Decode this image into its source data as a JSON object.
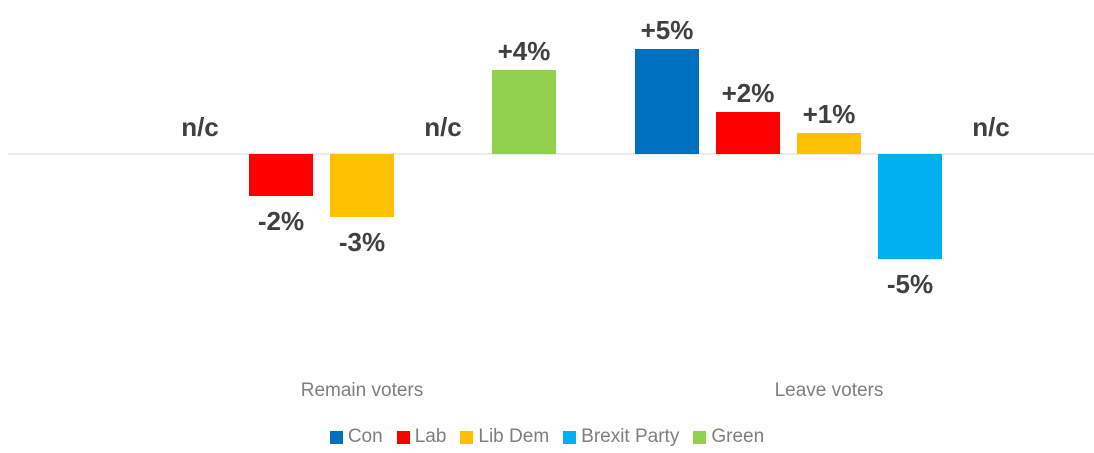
{
  "chart_data": {
    "type": "bar",
    "categories": [
      "Remain voters",
      "Leave voters"
    ],
    "series": [
      {
        "name": "Con",
        "color": "#0070c0",
        "values": [
          0,
          5
        ],
        "labels": [
          "n/c",
          "+5%"
        ]
      },
      {
        "name": "Lab",
        "color": "#ff0000",
        "values": [
          -2,
          2
        ],
        "labels": [
          "-2%",
          "+2%"
        ]
      },
      {
        "name": "Lib Dem",
        "color": "#ffc000",
        "values": [
          -3,
          1
        ],
        "labels": [
          "-3%",
          "+1%"
        ]
      },
      {
        "name": "Brexit Party",
        "color": "#00b0f0",
        "values": [
          0,
          -5
        ],
        "labels": [
          "n/c",
          "-5%"
        ]
      },
      {
        "name": "Green",
        "color": "#92d050",
        "values": [
          4,
          0
        ],
        "labels": [
          "+4%",
          "n/c"
        ]
      }
    ],
    "legend": "bottom",
    "grid": false
  }
}
